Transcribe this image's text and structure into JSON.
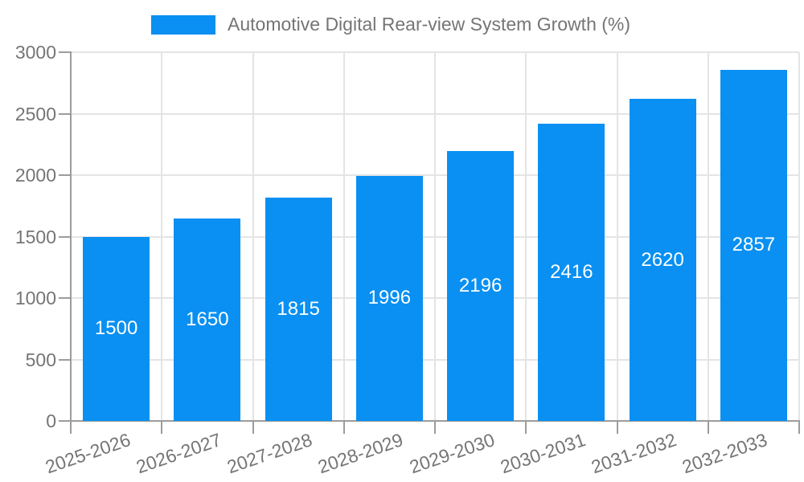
{
  "legend": {
    "label": "Automotive Digital Rear-view System Growth (%)"
  },
  "chart_data": {
    "type": "bar",
    "title": "Automotive Digital Rear-view System Growth (%)",
    "series_name": "Automotive Digital Rear-view System Growth (%)",
    "categories": [
      "2025-2026",
      "2026-2027",
      "2027-2028",
      "2028-2029",
      "2029-2030",
      "2030-2031",
      "2031-2032",
      "2032-2033"
    ],
    "values": [
      1500,
      1650,
      1815,
      1996,
      2196,
      2416,
      2620,
      2857
    ],
    "xlabel": "",
    "ylabel": "",
    "ylim": [
      0,
      3000
    ],
    "yticks": [
      0,
      500,
      1000,
      1500,
      2000,
      2500,
      3000
    ],
    "grid": true,
    "legend_position": "top-center",
    "value_label_position": "inside-center",
    "colors": {
      "bar": "#0990F2",
      "value_label": "#FFFFFF",
      "grid": "#E4E4E4",
      "axis": "#9C9C9C",
      "tick_text": "#757575",
      "background": "#FFFFFF"
    }
  }
}
